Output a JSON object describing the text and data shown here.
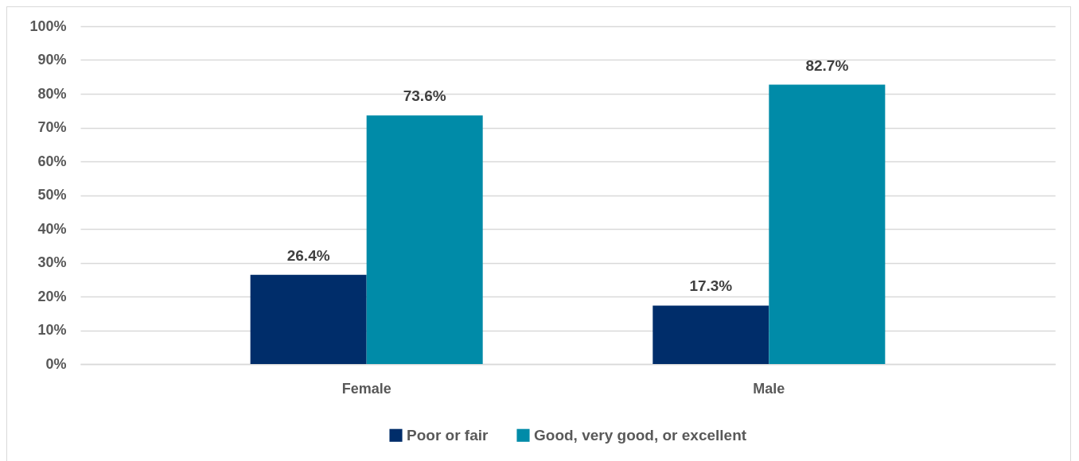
{
  "chart_data": {
    "type": "bar",
    "categories": [
      "Female",
      "Male"
    ],
    "series": [
      {
        "name": "Poor or fair",
        "color": "#002d6a",
        "values": [
          26.4,
          17.3
        ],
        "value_labels": [
          "26.4%",
          "17.3%"
        ]
      },
      {
        "name": "Good, very good, or excellent",
        "color": "#008ba8",
        "values": [
          73.6,
          82.7
        ],
        "value_labels": [
          "73.6%",
          "82.7%"
        ]
      }
    ],
    "ylim": [
      0,
      100
    ],
    "yticks": [
      {
        "value": 0,
        "label": "0%"
      },
      {
        "value": 10,
        "label": "10%"
      },
      {
        "value": 20,
        "label": "20%"
      },
      {
        "value": 30,
        "label": "30%"
      },
      {
        "value": 40,
        "label": "40%"
      },
      {
        "value": 50,
        "label": "50%"
      },
      {
        "value": 60,
        "label": "60%"
      },
      {
        "value": 70,
        "label": "70%"
      },
      {
        "value": 80,
        "label": "80%"
      },
      {
        "value": 90,
        "label": "90%"
      },
      {
        "value": 100,
        "label": "100%"
      }
    ],
    "grid": "y",
    "legend": "bottom"
  }
}
